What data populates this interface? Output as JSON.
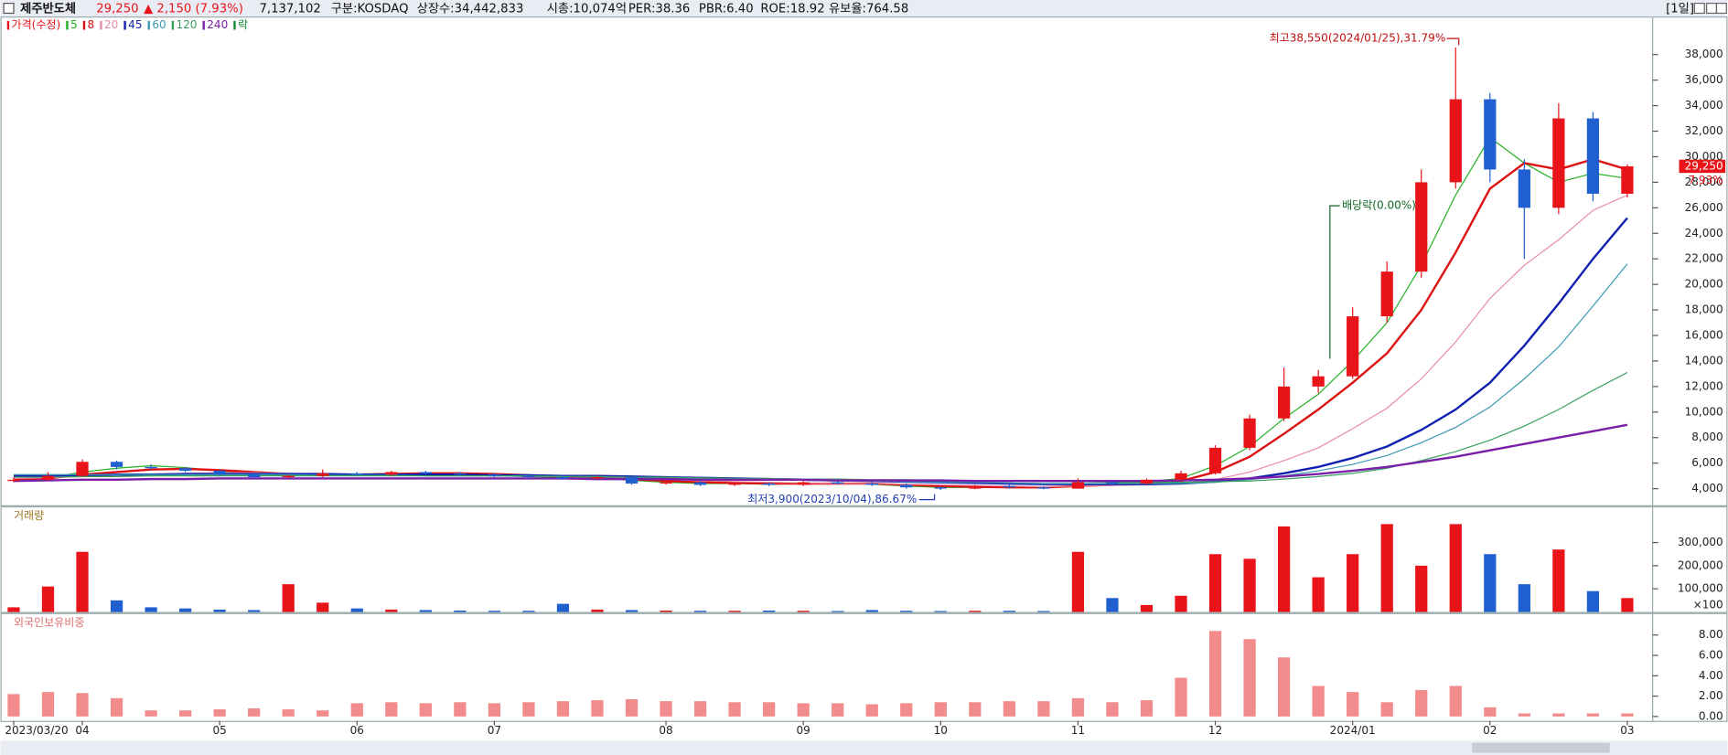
{
  "header": {
    "name": "제주반도체",
    "price": "29,250",
    "change": "▲ 2,150 (7.93%)",
    "volume": "7,137,102",
    "market": "구분:KOSDAQ",
    "shares": "상장수:34,442,833",
    "cap": "시총:10,074억",
    "per": "PER:38.36",
    "pbr": "PBR:6.40",
    "roe": "ROE:18.92",
    "reserve": "유보율:764.58",
    "period": "[1일]"
  },
  "chart_data": [
    {
      "type": "candlestick",
      "legend_title": "가격(수정)",
      "dividend_legend": "락",
      "up_color": "#e8141a",
      "down_color": "#1f5fd0",
      "open": [
        4600,
        4700,
        5000,
        6100,
        5700,
        5600,
        5400,
        5100,
        4900,
        5000,
        5200,
        5100,
        5300,
        5200,
        5100,
        5000,
        4900,
        4800,
        4900,
        4400,
        4500,
        4300,
        4400,
        4300,
        4500,
        4400,
        4300,
        4100,
        4000,
        4200,
        4100,
        4000,
        4500,
        4400,
        4700,
        5200,
        7200,
        9500,
        12000,
        12800,
        17500,
        21000,
        28000,
        34500,
        29000,
        26000,
        33000,
        27100
      ],
      "high": [
        4900,
        5300,
        6300,
        6200,
        5900,
        5700,
        5500,
        5200,
        5100,
        5500,
        5300,
        5400,
        5400,
        5300,
        5200,
        5100,
        5000,
        5000,
        4900,
        4600,
        4600,
        4500,
        4500,
        4600,
        4600,
        4500,
        4400,
        4200,
        4300,
        4300,
        4200,
        4800,
        4600,
        4800,
        5400,
        7400,
        9800,
        13500,
        13300,
        18200,
        21800,
        29000,
        38550,
        35000,
        29800,
        34200,
        33500,
        29400
      ],
      "low": [
        4500,
        4600,
        4900,
        5500,
        5500,
        5300,
        5000,
        4800,
        4800,
        4900,
        5000,
        5000,
        5100,
        5000,
        4900,
        4800,
        4700,
        4700,
        4300,
        4300,
        4200,
        4200,
        4200,
        4200,
        4300,
        4200,
        4000,
        3900,
        3950,
        4000,
        3950,
        4000,
        4300,
        4300,
        4600,
        5100,
        7000,
        9300,
        11500,
        12600,
        17000,
        20500,
        27500,
        28000,
        22000,
        25500,
        26500,
        26800
      ],
      "close": [
        4700,
        5000,
        6100,
        5700,
        5600,
        5400,
        5100,
        4900,
        5000,
        5200,
        5100,
        5300,
        5200,
        5100,
        5000,
        4900,
        4800,
        4900,
        4400,
        4500,
        4300,
        4400,
        4300,
        4500,
        4400,
        4300,
        4100,
        4000,
        4200,
        4100,
        4000,
        4500,
        4400,
        4700,
        5200,
        7200,
        9500,
        12000,
        12800,
        17500,
        21000,
        28000,
        34500,
        29000,
        26000,
        33000,
        27100,
        29250
      ],
      "ma_series": [
        {
          "name": "5",
          "color": "#22b022",
          "width": 1,
          "values": [
            4650,
            4850,
            5300,
            5600,
            5800,
            5650,
            5400,
            5150,
            5000,
            5050,
            5100,
            5200,
            5200,
            5150,
            5050,
            4950,
            4850,
            4850,
            4650,
            4500,
            4400,
            4400,
            4350,
            4400,
            4450,
            4350,
            4200,
            4100,
            4100,
            4100,
            4050,
            4250,
            4400,
            4550,
            4800,
            5800,
            7300,
            9500,
            11400,
            14000,
            17000,
            21500,
            27000,
            31500,
            29500,
            28000,
            28700,
            28300
          ]
        },
        {
          "name": "8",
          "color": "#dd1111",
          "width": 2,
          "values": [
            4700,
            4800,
            5100,
            5300,
            5500,
            5550,
            5450,
            5300,
            5150,
            5100,
            5100,
            5150,
            5200,
            5200,
            5150,
            5050,
            4950,
            4900,
            4750,
            4600,
            4500,
            4450,
            4400,
            4400,
            4400,
            4400,
            4300,
            4200,
            4150,
            4100,
            4100,
            4200,
            4300,
            4400,
            4600,
            5300,
            6500,
            8300,
            10200,
            12300,
            14600,
            18000,
            22500,
            27500,
            29500,
            29000,
            29800,
            29000
          ]
        },
        {
          "name": "20",
          "color": "#e88aa8",
          "width": 1,
          "values": [
            4800,
            4850,
            4950,
            5050,
            5150,
            5200,
            5250,
            5250,
            5200,
            5150,
            5100,
            5100,
            5100,
            5100,
            5100,
            5050,
            5000,
            4950,
            4850,
            4750,
            4650,
            4550,
            4500,
            4450,
            4400,
            4400,
            4350,
            4300,
            4250,
            4200,
            4150,
            4200,
            4250,
            4300,
            4400,
            4700,
            5300,
            6200,
            7200,
            8700,
            10300,
            12600,
            15500,
            18900,
            21500,
            23500,
            25800,
            27000
          ]
        },
        {
          "name": "45",
          "color": "#1020b0",
          "width": 2,
          "values": [
            5000,
            5000,
            5050,
            5100,
            5100,
            5150,
            5150,
            5150,
            5150,
            5150,
            5100,
            5100,
            5100,
            5100,
            5050,
            5050,
            5000,
            5000,
            4950,
            4900,
            4850,
            4800,
            4750,
            4700,
            4650,
            4600,
            4550,
            4500,
            4450,
            4400,
            4350,
            4350,
            4350,
            4350,
            4400,
            4550,
            4800,
            5200,
            5700,
            6400,
            7300,
            8600,
            10200,
            12300,
            15200,
            18500,
            22000,
            25200
          ]
        },
        {
          "name": "60",
          "color": "#3a9ab0",
          "width": 1,
          "values": [
            5100,
            5100,
            5100,
            5100,
            5100,
            5100,
            5100,
            5100,
            5100,
            5050,
            5050,
            5050,
            5000,
            5000,
            5000,
            4950,
            4950,
            4900,
            4900,
            4850,
            4800,
            4750,
            4700,
            4650,
            4600,
            4600,
            4550,
            4500,
            4500,
            4450,
            4400,
            4400,
            4400,
            4400,
            4400,
            4500,
            4700,
            5000,
            5400,
            5900,
            6600,
            7600,
            8800,
            10400,
            12600,
            15100,
            18300,
            21600
          ]
        },
        {
          "name": "120",
          "color": "#3aa060",
          "width": 1,
          "values": [
            4900,
            4900,
            4950,
            4950,
            5000,
            5000,
            5000,
            5000,
            5000,
            5000,
            5000,
            5000,
            5000,
            5000,
            5000,
            5000,
            4950,
            4950,
            4900,
            4900,
            4850,
            4800,
            4800,
            4750,
            4750,
            4700,
            4700,
            4650,
            4600,
            4600,
            4550,
            4550,
            4500,
            4500,
            4500,
            4550,
            4600,
            4750,
            4950,
            5200,
            5600,
            6200,
            6900,
            7800,
            8900,
            10200,
            11700,
            13100
          ]
        },
        {
          "name": "240",
          "color": "#7a1fa8",
          "width": 2,
          "values": [
            4600,
            4650,
            4700,
            4700,
            4750,
            4750,
            4800,
            4800,
            4800,
            4800,
            4800,
            4800,
            4800,
            4800,
            4800,
            4800,
            4800,
            4750,
            4750,
            4750,
            4700,
            4700,
            4700,
            4700,
            4650,
            4650,
            4650,
            4650,
            4600,
            4600,
            4600,
            4600,
            4600,
            4600,
            4650,
            4700,
            4800,
            4950,
            5150,
            5400,
            5700,
            6100,
            6500,
            7000,
            7500,
            8000,
            8500,
            9000
          ]
        }
      ],
      "ylim": [
        3000,
        39000
      ],
      "yticks": [
        {
          "value": 4000,
          "label": "4,000"
        },
        {
          "value": 6000,
          "label": "6,000"
        },
        {
          "value": 8000,
          "label": "8,000"
        },
        {
          "value": 10000,
          "label": "10,000"
        },
        {
          "value": 12000,
          "label": "12,000"
        },
        {
          "value": 14000,
          "label": "14,000"
        },
        {
          "value": 16000,
          "label": "16,000"
        },
        {
          "value": 18000,
          "label": "18,000"
        },
        {
          "value": 20000,
          "label": "20,000"
        },
        {
          "value": 22000,
          "label": "22,000"
        },
        {
          "value": 24000,
          "label": "24,000"
        },
        {
          "value": 26000,
          "label": "26,000"
        },
        {
          "value": 28000,
          "label": "28,000"
        },
        {
          "value": 30000,
          "label": "30,000"
        },
        {
          "value": 32000,
          "label": "32,000"
        },
        {
          "value": 34000,
          "label": "34,000"
        },
        {
          "value": 36000,
          "label": "36,000"
        },
        {
          "value": 38000,
          "label": "38,000"
        }
      ],
      "annotations": {
        "high": "최고38,550(2024/01/25),31.79%",
        "low": "최저3,900(2023/10/04),86.67%",
        "dividend": "배당락(0.00%)"
      },
      "price_label": "29,250",
      "change_label": "7.93%"
    },
    {
      "type": "volume",
      "title": "거래량",
      "unit_label": "×100",
      "values": [
        20000,
        110000,
        260000,
        50000,
        20000,
        15000,
        10000,
        8000,
        120000,
        40000,
        15000,
        10000,
        8000,
        6000,
        5000,
        5000,
        35000,
        10000,
        8000,
        6000,
        5000,
        5000,
        6000,
        5000,
        4000,
        8000,
        5000,
        4000,
        5000,
        5000,
        4000,
        260000,
        60000,
        30000,
        70000,
        250000,
        230000,
        370000,
        150000,
        250000,
        380000,
        200000,
        380000,
        250000,
        120000,
        270000,
        90000,
        60000
      ],
      "ylim": [
        0,
        450000
      ],
      "yticks": [
        {
          "value": 100000,
          "label": "100,000"
        },
        {
          "value": 200000,
          "label": "200,000"
        },
        {
          "value": 300000,
          "label": "300,000"
        }
      ]
    },
    {
      "type": "bar",
      "title": "외국인보유비중",
      "color": "#f28b8b",
      "values": [
        2.2,
        2.4,
        2.3,
        1.8,
        0.6,
        0.6,
        0.7,
        0.8,
        0.7,
        0.6,
        1.3,
        1.4,
        1.3,
        1.4,
        1.3,
        1.4,
        1.5,
        1.6,
        1.7,
        1.5,
        1.5,
        1.4,
        1.4,
        1.3,
        1.3,
        1.2,
        1.3,
        1.4,
        1.4,
        1.5,
        1.5,
        1.8,
        1.4,
        1.6,
        3.8,
        8.4,
        7.6,
        5.8,
        3.0,
        2.4,
        1.4,
        2.6,
        3.0,
        0.9,
        0.3,
        0.3,
        0.3,
        0.3
      ],
      "categories": [
        "2023/03/20",
        null,
        "04",
        null,
        null,
        null,
        "05",
        null,
        null,
        null,
        "06",
        null,
        null,
        null,
        "07",
        null,
        null,
        null,
        null,
        "08",
        null,
        null,
        null,
        "09",
        null,
        null,
        null,
        "10",
        null,
        null,
        null,
        "11",
        null,
        null,
        null,
        "12",
        null,
        null,
        null,
        "2024/01",
        null,
        null,
        null,
        "02",
        null,
        null,
        null,
        "03"
      ],
      "ylim": [
        -0.4,
        9.5
      ],
      "yticks": [
        {
          "value": 0,
          "label": "0.00"
        },
        {
          "value": 2,
          "label": "2.00"
        },
        {
          "value": 4,
          "label": "4.00"
        },
        {
          "value": 6,
          "label": "6.00"
        },
        {
          "value": 8,
          "label": "8.00"
        }
      ]
    }
  ]
}
